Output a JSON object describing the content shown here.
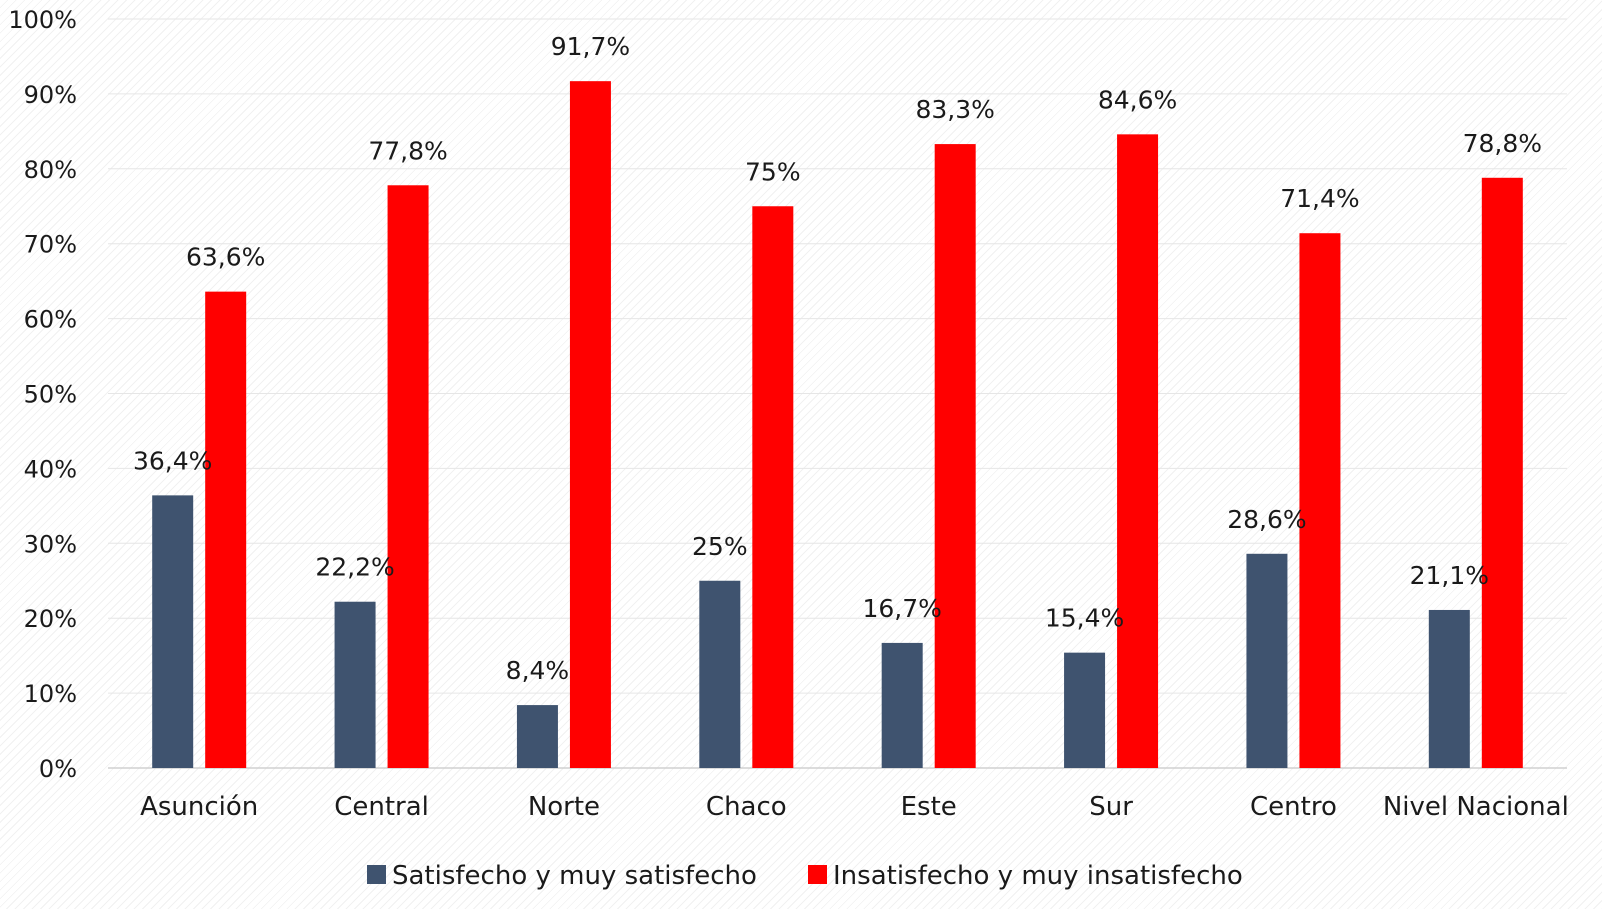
{
  "chart_data": {
    "type": "bar",
    "categories": [
      "Asunción",
      "Central",
      "Norte",
      "Chaco",
      "Este",
      "Sur",
      "Centro",
      "Nivel Nacional"
    ],
    "series": [
      {
        "name": "Satisfecho y muy satisfecho",
        "color": "#3f536f",
        "values": [
          36.4,
          22.2,
          8.4,
          25,
          16.7,
          15.4,
          28.6,
          21.1
        ],
        "labels": [
          "36,4%",
          "22,2%",
          "8,4%",
          "25%",
          "16,7%",
          "15,4%",
          "28,6%",
          "21,1%"
        ]
      },
      {
        "name": "Insatisfecho y muy insatisfecho",
        "color": "#ff0000",
        "values": [
          63.6,
          77.8,
          91.7,
          75,
          83.3,
          84.6,
          71.4,
          78.8
        ],
        "labels": [
          "63,6%",
          "77,8%",
          "91,7%",
          "75%",
          "83,3%",
          "84,6%",
          "71,4%",
          "78,8%"
        ]
      }
    ],
    "ylim": [
      0,
      100
    ],
    "yticks": [
      "0%",
      "10%",
      "20%",
      "30%",
      "40%",
      "50%",
      "60%",
      "70%",
      "80%",
      "90%",
      "100%"
    ],
    "grid": true,
    "legend": "bottom",
    "xlabel": "",
    "ylabel": ""
  }
}
